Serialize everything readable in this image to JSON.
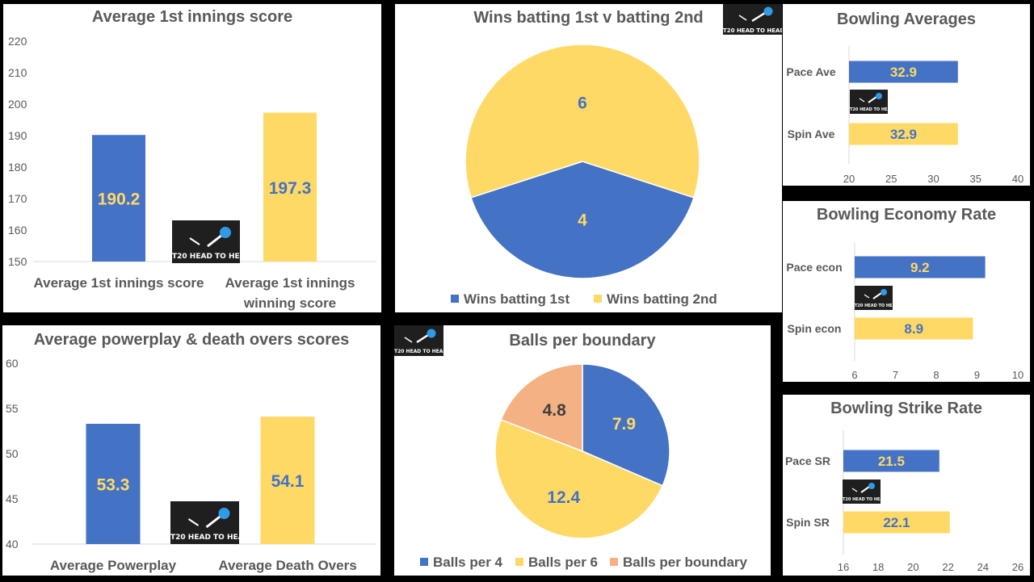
{
  "colors": {
    "blue": "#4472C4",
    "yellow": "#FFD966",
    "peach": "#F4B183",
    "value_blue": "#FFD966",
    "value_yellow": "#4472C4",
    "value_peach": "#404040",
    "axis_text": "#595959",
    "panel_bg": "#FFFFFF",
    "page_bg": "#000000"
  },
  "logo": {
    "text": "T20 HEAD TO HEAD",
    "icon": "ball-streak-icon"
  },
  "chart_data": [
    {
      "id": "avg1st",
      "type": "bar",
      "title": "Average 1st innings score",
      "categories": [
        "Average 1st innings score",
        "Average 1st innings winning score"
      ],
      "category_lines": [
        [
          "Average 1st innings score"
        ],
        [
          "Average 1st innings",
          "winning score"
        ]
      ],
      "values": [
        190.2,
        197.3
      ],
      "value_labels": [
        "190.2",
        "197.3"
      ],
      "ylim": [
        150,
        220
      ],
      "yticks": [
        150,
        160,
        170,
        180,
        190,
        200,
        210,
        220
      ],
      "grid": false,
      "legend": "none"
    },
    {
      "id": "wins",
      "type": "pie",
      "title": "Wins batting 1st v batting 2nd",
      "labels": [
        "Wins batting 1st",
        "Wins batting 2nd"
      ],
      "values": [
        4,
        6
      ],
      "value_labels": [
        "4",
        "6"
      ],
      "legend": "bottom"
    },
    {
      "id": "bowlave",
      "type": "bar",
      "orientation": "horizontal",
      "title": "Bowling Averages",
      "categories": [
        "Pace Ave",
        "Spin Ave"
      ],
      "values": [
        32.9,
        32.9
      ],
      "value_labels": [
        "32.9",
        "32.9"
      ],
      "xlim": [
        20,
        40
      ],
      "xticks": [
        20,
        25,
        30,
        35,
        40
      ],
      "grid": false,
      "legend": "none"
    },
    {
      "id": "bowlecon",
      "type": "bar",
      "orientation": "horizontal",
      "title": "Bowling Economy Rate",
      "categories": [
        "Pace econ",
        "Spin econ"
      ],
      "values": [
        9.2,
        8.9
      ],
      "value_labels": [
        "9.2",
        "8.9"
      ],
      "xlim": [
        6,
        10
      ],
      "xticks": [
        6,
        7,
        8,
        9,
        10
      ],
      "grid": false,
      "legend": "none"
    },
    {
      "id": "ppdeath",
      "type": "bar",
      "title": "Average powerplay & death overs scores",
      "categories": [
        "Average Powerplay",
        "Average Death Overs"
      ],
      "category_lines": [
        [
          "Average Powerplay"
        ],
        [
          "Average Death Overs"
        ]
      ],
      "values": [
        53.3,
        54.1
      ],
      "value_labels": [
        "53.3",
        "54.1"
      ],
      "ylim": [
        40,
        60
      ],
      "yticks": [
        40,
        45,
        50,
        55,
        60
      ],
      "grid": false,
      "legend": "none"
    },
    {
      "id": "bpb",
      "type": "pie",
      "title": "Balls per boundary",
      "labels": [
        "Balls per 4",
        "Balls per 6",
        "Balls per boundary"
      ],
      "values": [
        7.9,
        12.4,
        4.8
      ],
      "value_labels": [
        "7.9",
        "12.4",
        "4.8"
      ],
      "legend": "bottom"
    },
    {
      "id": "bowlsr",
      "type": "bar",
      "orientation": "horizontal",
      "title": "Bowling Strike Rate",
      "categories": [
        "Pace SR",
        "Spin SR"
      ],
      "values": [
        21.5,
        22.1
      ],
      "value_labels": [
        "21.5",
        "22.1"
      ],
      "xlim": [
        16,
        26
      ],
      "xticks": [
        16,
        18,
        20,
        22,
        24,
        26
      ],
      "grid": false,
      "legend": "none"
    }
  ]
}
